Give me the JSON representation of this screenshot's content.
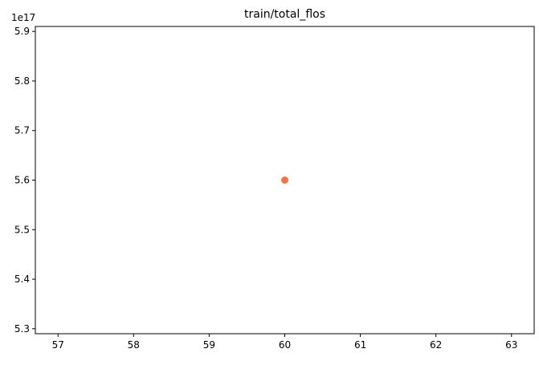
{
  "chart_data": {
    "type": "scatter",
    "title": "train/total_flos",
    "xlabel": "",
    "ylabel": "",
    "x": [
      60
    ],
    "y": [
      5.6e+17
    ],
    "point_color": "#f4743f",
    "xlim": [
      56.7,
      63.3
    ],
    "ylim": [
      5.29e+17,
      5.91e+17
    ],
    "x_ticks": [
      57,
      58,
      59,
      60,
      61,
      62,
      63
    ],
    "x_tick_labels": [
      "57",
      "58",
      "59",
      "60",
      "61",
      "62",
      "63"
    ],
    "y_ticks": [
      5.3e+17,
      5.4e+17,
      5.5e+17,
      5.6e+17,
      5.7e+17,
      5.8e+17,
      5.9e+17
    ],
    "y_tick_labels": [
      "5.3",
      "5.4",
      "5.5",
      "5.6",
      "5.7",
      "5.8",
      "5.9"
    ],
    "y_offset_label": "1e17",
    "grid": false,
    "legend": "none"
  }
}
